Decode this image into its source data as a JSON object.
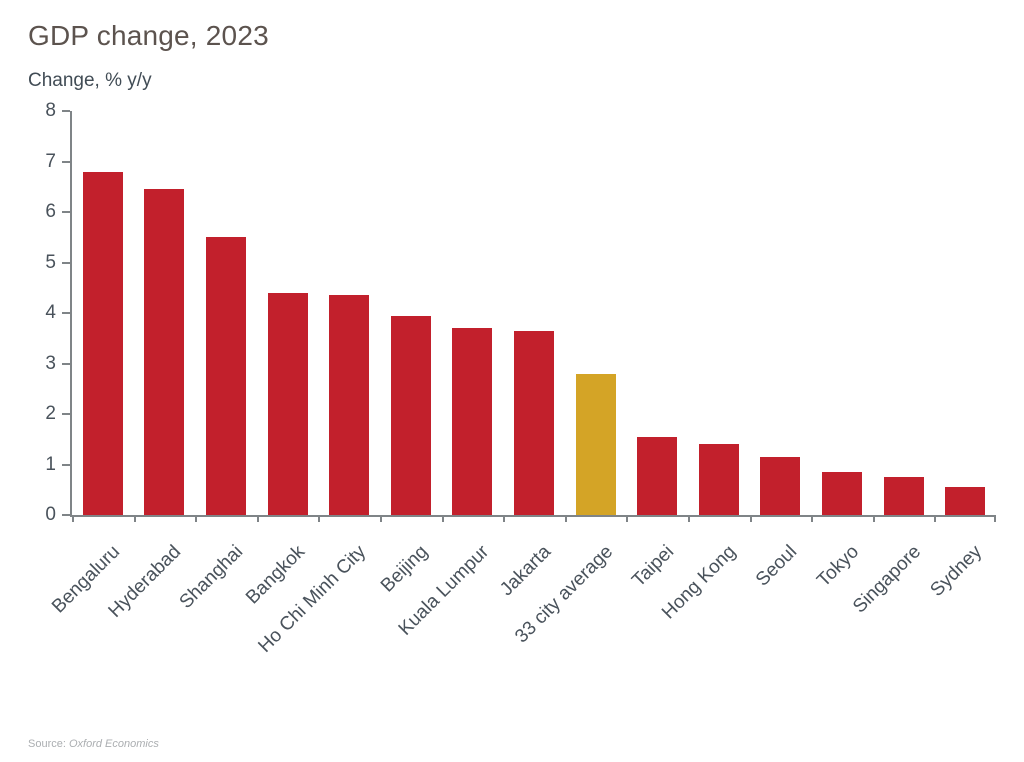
{
  "chart_data": {
    "type": "bar",
    "title": "GDP change, 2023",
    "ylabel": "Change, % y/y",
    "xlabel": "",
    "ylim": [
      0,
      8
    ],
    "yticks": [
      0,
      1,
      2,
      3,
      4,
      5,
      6,
      7,
      8
    ],
    "grid": false,
    "legend": "none",
    "categories": [
      "Bengaluru",
      "Hyderabad",
      "Shanghai",
      "Bangkok",
      "Ho Chi Minh City",
      "Beijing",
      "Kuala Lumpur",
      "Jakarta",
      "33 city average",
      "Taipei",
      "Hong Kong",
      "Seoul",
      "Tokyo",
      "Singapore",
      "Sydney"
    ],
    "values": [
      6.8,
      6.45,
      5.5,
      4.4,
      4.35,
      3.95,
      3.7,
      3.65,
      2.8,
      1.55,
      1.4,
      1.15,
      0.85,
      0.75,
      0.55
    ],
    "highlight_index": 8,
    "colors": {
      "bar_default": "#c2202c",
      "bar_highlight": "#d4a426",
      "axis": "#7f8487",
      "title": "#5c534e",
      "subtitle": "#414c55",
      "tick_label": "#49525b",
      "source": "#abaeb1"
    }
  },
  "source": {
    "prefix": "Source: ",
    "name": "Oxford Economics"
  }
}
